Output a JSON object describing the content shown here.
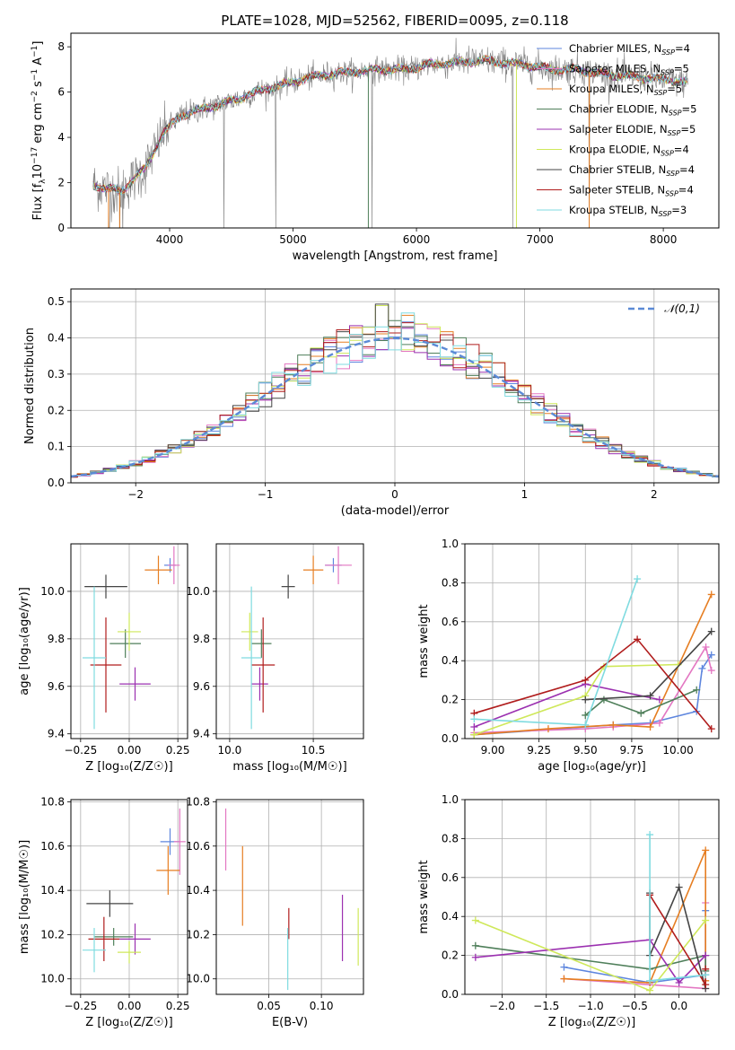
{
  "chart_data": [
    {
      "id": "spectrum",
      "type": "line",
      "title": "PLATE=1028, MJD=52562, FIBERID=0095, z=0.118",
      "xlabel": "wavelength [Angstrom, rest frame]",
      "ylabel_parts": [
        "Flux [f",
        "λ",
        "10",
        "−17",
        " erg cm",
        "−2",
        " s",
        "−1",
        " A",
        "−1",
        "]"
      ],
      "xlim": [
        3200,
        8450
      ],
      "ylim": [
        0,
        8.6
      ],
      "xticks": [
        4000,
        5000,
        6000,
        7000,
        8000
      ],
      "xtick_labels": [
        "4000",
        "5000",
        "6000",
        "7000",
        "8000"
      ],
      "yticks": [
        0,
        2,
        4,
        6,
        8
      ],
      "ytick_labels": [
        "0",
        "2",
        "4",
        "6",
        "8"
      ],
      "grid": false,
      "legend_position": "top-right",
      "continuum_x": [
        3380,
        3600,
        3800,
        3950,
        4100,
        4300,
        4500,
        4700,
        4900,
        5100,
        5300,
        5500,
        5700,
        5900,
        6100,
        6300,
        6500,
        6700,
        6900,
        7100,
        7300,
        7500,
        7700,
        7900,
        8100,
        8200
      ],
      "continuum_y": [
        1.9,
        1.6,
        2.6,
        4.2,
        5.0,
        5.3,
        5.6,
        6.0,
        6.3,
        6.6,
        6.8,
        6.9,
        7.0,
        7.0,
        7.2,
        7.3,
        7.4,
        7.3,
        7.2,
        7.0,
        7.0,
        6.8,
        6.7,
        6.6,
        6.5,
        6.4
      ],
      "series": [
        {
          "name": "Chabrier MILES",
          "nssp": "4",
          "color": "#5e86de"
        },
        {
          "name": "Salpeter MILES",
          "nssp": "5",
          "color": "#e377c2"
        },
        {
          "name": "Kroupa MILES",
          "nssp": "5",
          "color": "#e67e22"
        },
        {
          "name": "Chabrier ELODIE",
          "nssp": "5",
          "color": "#4f7f5a"
        },
        {
          "name": "Salpeter ELODIE",
          "nssp": "5",
          "color": "#9b30b0"
        },
        {
          "name": "Kroupa ELODIE",
          "nssp": "4",
          "color": "#cfe85a"
        },
        {
          "name": "Chabrier STELIB",
          "nssp": "4",
          "color": "#444444"
        },
        {
          "name": "Salpeter STELIB",
          "nssp": "4",
          "color": "#b01c1c"
        },
        {
          "name": "Kroupa STELIB",
          "nssp": "3",
          "color": "#7fdbe0"
        }
      ],
      "nssp_label": "N",
      "nssp_sub": "SSP"
    },
    {
      "id": "residuals",
      "type": "histogram",
      "xlabel": "(data-model)/error",
      "ylabel": "Normed distribution",
      "xlim": [
        -2.5,
        2.5
      ],
      "ylim": [
        0,
        0.535
      ],
      "xticks": [
        -2,
        -1,
        0,
        1,
        2
      ],
      "xtick_labels": [
        "−2",
        "−1",
        "0",
        "1",
        "2"
      ],
      "yticks": [
        0,
        0.1,
        0.2,
        0.3,
        0.4,
        0.5
      ],
      "ytick_labels": [
        "0.0",
        "0.1",
        "0.2",
        "0.3",
        "0.4",
        "0.5"
      ],
      "grid": true,
      "legend_label": "𝒩(0,1)",
      "legend_position": "top-right",
      "bin_width": 0.1
    },
    {
      "id": "age-vs-Z",
      "type": "scatter",
      "xlabel": "Z [log₁₀(Z/Z☉)]",
      "ylabel": "age  [log₁₀(age/yr)]",
      "xlim": [
        -0.3,
        0.3
      ],
      "ylim": [
        9.38,
        10.2
      ],
      "xticks": [
        -0.25,
        0,
        0.25
      ],
      "xtick_labels": [
        "−0.25",
        "0.00",
        "0.25"
      ],
      "yticks": [
        9.4,
        9.6,
        9.8,
        10.0
      ],
      "ytick_labels": [
        "9.4",
        "9.6",
        "9.8",
        "10.0"
      ],
      "grid": true,
      "points": [
        {
          "x": 0.21,
          "y": 10.11,
          "xerr": 0.03,
          "yerr": 0.03,
          "color": "#5e86de"
        },
        {
          "x": 0.23,
          "y": 10.11,
          "xerr": 0.03,
          "yerr": 0.08,
          "color": "#e377c2"
        },
        {
          "x": 0.15,
          "y": 10.09,
          "xerr": 0.07,
          "yerr": 0.06,
          "color": "#e67e22"
        },
        {
          "x": -0.02,
          "y": 9.78,
          "xerr": 0.08,
          "yerr": 0.06,
          "color": "#4f7f5a"
        },
        {
          "x": 0.03,
          "y": 9.61,
          "xerr": 0.08,
          "yerr": 0.07,
          "color": "#9b30b0"
        },
        {
          "x": 0.0,
          "y": 9.83,
          "xerr": 0.06,
          "yerr": 0.08,
          "color": "#cfe85a"
        },
        {
          "x": -0.12,
          "y": 10.02,
          "xerr": 0.11,
          "yerr": 0.05,
          "color": "#444444"
        },
        {
          "x": -0.12,
          "y": 9.69,
          "xerr": 0.08,
          "yerr": 0.2,
          "color": "#b01c1c"
        },
        {
          "x": -0.18,
          "y": 9.72,
          "xerr": 0.06,
          "yerr": 0.3,
          "color": "#7fdbe0"
        }
      ]
    },
    {
      "id": "age-vs-mass",
      "type": "scatter",
      "xlabel": "mass [log₁₀(M/M☉)]",
      "ylabel": "",
      "xlim": [
        9.92,
        10.8
      ],
      "ylim": [
        9.38,
        10.2
      ],
      "xticks": [
        10.0,
        10.5
      ],
      "xtick_labels": [
        "10.0",
        "10.5"
      ],
      "yticks": [
        9.4,
        9.6,
        9.8,
        10.0
      ],
      "ytick_labels": [
        "9.4",
        "9.6",
        "9.8",
        "10.0"
      ],
      "grid": true,
      "points": [
        {
          "x": 10.62,
          "y": 10.11,
          "xerr": 0.05,
          "yerr": 0.03,
          "color": "#5e86de"
        },
        {
          "x": 10.65,
          "y": 10.11,
          "xerr": 0.08,
          "yerr": 0.08,
          "color": "#e377c2"
        },
        {
          "x": 10.5,
          "y": 10.09,
          "xerr": 0.06,
          "yerr": 0.06,
          "color": "#e67e22"
        },
        {
          "x": 10.19,
          "y": 9.78,
          "xerr": 0.06,
          "yerr": 0.06,
          "color": "#4f7f5a"
        },
        {
          "x": 10.18,
          "y": 9.61,
          "xerr": 0.05,
          "yerr": 0.07,
          "color": "#9b30b0"
        },
        {
          "x": 10.12,
          "y": 9.83,
          "xerr": 0.05,
          "yerr": 0.08,
          "color": "#cfe85a"
        },
        {
          "x": 10.35,
          "y": 10.02,
          "xerr": 0.04,
          "yerr": 0.05,
          "color": "#444444"
        },
        {
          "x": 10.2,
          "y": 9.69,
          "xerr": 0.07,
          "yerr": 0.2,
          "color": "#b01c1c"
        },
        {
          "x": 10.13,
          "y": 9.72,
          "xerr": 0.06,
          "yerr": 0.3,
          "color": "#7fdbe0"
        }
      ]
    },
    {
      "id": "weight-vs-age",
      "type": "line",
      "xlabel": "age  [log₁₀(age/yr)]",
      "ylabel": "mass weight",
      "xlim": [
        8.85,
        10.22
      ],
      "ylim": [
        0,
        1.0
      ],
      "xticks": [
        9.0,
        9.25,
        9.5,
        9.75,
        10.0
      ],
      "xtick_labels": [
        "9.00",
        "9.25",
        "9.50",
        "9.75",
        "10.00"
      ],
      "yticks": [
        0,
        0.2,
        0.4,
        0.6,
        0.8,
        1.0
      ],
      "ytick_labels": [
        "0.0",
        "0.2",
        "0.4",
        "0.6",
        "0.8",
        "1.0"
      ],
      "grid": true,
      "series": [
        {
          "color": "#5e86de",
          "x": [
            8.9,
            9.5,
            9.65,
            9.85,
            10.1,
            10.13,
            10.18
          ],
          "y": [
            0.02,
            0.06,
            0.07,
            0.08,
            0.14,
            0.36,
            0.43
          ]
        },
        {
          "color": "#e377c2",
          "x": [
            8.9,
            9.5,
            9.65,
            9.9,
            10.15,
            10.18
          ],
          "y": [
            0.03,
            0.05,
            0.06,
            0.08,
            0.47,
            0.35
          ]
        },
        {
          "color": "#e67e22",
          "x": [
            8.9,
            9.3,
            9.65,
            9.85,
            10.18
          ],
          "y": [
            0.02,
            0.05,
            0.07,
            0.06,
            0.74
          ]
        },
        {
          "color": "#4f7f5a",
          "x": [
            9.5,
            9.6,
            9.8,
            10.1
          ],
          "y": [
            0.12,
            0.2,
            0.13,
            0.25
          ]
        },
        {
          "color": "#9b30b0",
          "x": [
            8.9,
            9.5,
            9.9
          ],
          "y": [
            0.06,
            0.28,
            0.2
          ]
        },
        {
          "color": "#cfe85a",
          "x": [
            8.9,
            9.5,
            9.6,
            10.0
          ],
          "y": [
            0.02,
            0.22,
            0.37,
            0.38
          ]
        },
        {
          "color": "#444444",
          "x": [
            9.5,
            9.85,
            10.18
          ],
          "y": [
            0.2,
            0.22,
            0.55
          ]
        },
        {
          "color": "#b01c1c",
          "x": [
            8.9,
            9.5,
            9.78,
            10.18
          ],
          "y": [
            0.13,
            0.3,
            0.51,
            0.05
          ]
        },
        {
          "color": "#7fdbe0",
          "x": [
            8.9,
            9.5,
            9.78
          ],
          "y": [
            0.1,
            0.07,
            0.82
          ]
        }
      ]
    },
    {
      "id": "mass-vs-Z",
      "type": "scatter",
      "xlabel": "Z [log₁₀(Z/Z☉)]",
      "ylabel": "mass [log₁₀(M/M☉)]",
      "xlim": [
        -0.3,
        0.3
      ],
      "ylim": [
        9.93,
        10.81
      ],
      "xticks": [
        -0.25,
        0,
        0.25
      ],
      "xtick_labels": [
        "−0.25",
        "0.00",
        "0.25"
      ],
      "yticks": [
        10.0,
        10.2,
        10.4,
        10.6,
        10.8
      ],
      "ytick_labels": [
        "10.0",
        "10.2",
        "10.4",
        "10.6",
        "10.8"
      ],
      "grid": true,
      "points": [
        {
          "x": 0.21,
          "y": 10.62,
          "xerr": 0.05,
          "yerr": 0.06,
          "color": "#5e86de"
        },
        {
          "x": 0.26,
          "y": 10.62,
          "xerr": 0.03,
          "yerr": 0.15,
          "color": "#e377c2"
        },
        {
          "x": 0.2,
          "y": 10.49,
          "xerr": 0.06,
          "yerr": 0.11,
          "color": "#e67e22"
        },
        {
          "x": -0.08,
          "y": 10.19,
          "xerr": 0.1,
          "yerr": 0.04,
          "color": "#4f7f5a"
        },
        {
          "x": 0.03,
          "y": 10.18,
          "xerr": 0.08,
          "yerr": 0.07,
          "color": "#9b30b0"
        },
        {
          "x": 0.0,
          "y": 10.12,
          "xerr": 0.06,
          "yerr": 0.05,
          "color": "#cfe85a"
        },
        {
          "x": -0.1,
          "y": 10.34,
          "xerr": 0.12,
          "yerr": 0.06,
          "color": "#444444"
        },
        {
          "x": -0.13,
          "y": 10.18,
          "xerr": 0.08,
          "yerr": 0.1,
          "color": "#b01c1c"
        },
        {
          "x": -0.18,
          "y": 10.13,
          "xerr": 0.06,
          "yerr": 0.1,
          "color": "#7fdbe0"
        }
      ]
    },
    {
      "id": "mass-vs-EBV",
      "type": "scatter",
      "xlabel": "E(B-V)",
      "ylabel": "",
      "xlim": [
        0.0,
        0.14
      ],
      "ylim": [
        9.93,
        10.81
      ],
      "xticks": [
        0.05,
        0.1
      ],
      "xtick_labels": [
        "0.05",
        "0.10"
      ],
      "yticks": [
        10.0,
        10.2,
        10.4,
        10.6,
        10.8
      ],
      "ytick_labels": [
        "10.0",
        "10.2",
        "10.4",
        "10.6",
        "10.8"
      ],
      "grid": true,
      "points": [
        {
          "x": 0.009,
          "y": 10.63,
          "xerr": 0.0,
          "yerr": 0.14,
          "color": "#e377c2"
        },
        {
          "x": 0.025,
          "y": 10.42,
          "xerr": 0.0,
          "yerr": 0.18,
          "color": "#e67e22"
        },
        {
          "x": 0.069,
          "y": 10.25,
          "xerr": 0.0,
          "yerr": 0.07,
          "color": "#b01c1c"
        },
        {
          "x": 0.068,
          "y": 10.09,
          "xerr": 0.0,
          "yerr": 0.14,
          "color": "#7fdbe0"
        },
        {
          "x": 0.12,
          "y": 10.23,
          "xerr": 0.0,
          "yerr": 0.15,
          "color": "#9b30b0"
        },
        {
          "x": 0.135,
          "y": 10.19,
          "xerr": 0.0,
          "yerr": 0.13,
          "color": "#cfe85a"
        }
      ]
    },
    {
      "id": "weight-vs-Z",
      "type": "line",
      "xlabel": "Z [log₁₀(Z/Z☉)]",
      "ylabel": "mass weight",
      "xlim": [
        -2.42,
        0.45
      ],
      "ylim": [
        0,
        1.0
      ],
      "xticks": [
        -2.0,
        -1.5,
        -1.0,
        -0.5,
        0.0
      ],
      "xtick_labels": [
        "−2.0",
        "−1.5",
        "−1.0",
        "−0.5",
        "0.0"
      ],
      "yticks": [
        0,
        0.2,
        0.4,
        0.6,
        0.8,
        1.0
      ],
      "ytick_labels": [
        "0.0",
        "0.2",
        "0.4",
        "0.6",
        "0.8",
        "1.0"
      ],
      "grid": true,
      "series": [
        {
          "color": "#5e86de",
          "x": [
            -1.3,
            -0.33,
            0.3,
            0.3
          ],
          "y": [
            0.14,
            0.06,
            0.1,
            0.43
          ]
        },
        {
          "color": "#e377c2",
          "x": [
            -1.3,
            0.3,
            0.3
          ],
          "y": [
            0.08,
            0.03,
            0.47
          ]
        },
        {
          "color": "#e67e22",
          "x": [
            -1.3,
            -0.33,
            0.3,
            0.3
          ],
          "y": [
            0.08,
            0.06,
            0.74,
            0.07
          ]
        },
        {
          "color": "#4f7f5a",
          "x": [
            -2.3,
            -0.33,
            0.3,
            0.3
          ],
          "y": [
            0.25,
            0.13,
            0.2,
            0.12
          ]
        },
        {
          "color": "#9b30b0",
          "x": [
            -2.3,
            -0.33,
            0.0,
            0.3
          ],
          "y": [
            0.19,
            0.28,
            0.06,
            0.2
          ]
        },
        {
          "color": "#cfe85a",
          "x": [
            -2.3,
            -0.33,
            0.3
          ],
          "y": [
            0.38,
            0.02,
            0.38
          ]
        },
        {
          "color": "#444444",
          "x": [
            -0.33,
            -0.33,
            0.0,
            0.3
          ],
          "y": [
            0.52,
            0.2,
            0.55,
            0.03
          ]
        },
        {
          "color": "#b01c1c",
          "x": [
            -0.33,
            0.3,
            0.3
          ],
          "y": [
            0.51,
            0.05,
            0.13
          ]
        },
        {
          "color": "#7fdbe0",
          "x": [
            -0.33,
            -0.33,
            0.3
          ],
          "y": [
            0.82,
            0.07,
            0.1
          ]
        }
      ]
    }
  ]
}
